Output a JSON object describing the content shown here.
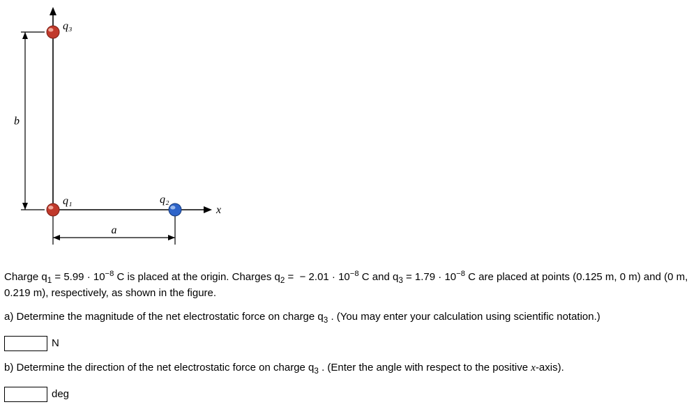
{
  "figure": {
    "q1_label": "q₁",
    "q2_label": "q₂",
    "q3_label": "q₃",
    "x_axis_label": "x",
    "a_label": "a",
    "b_label": "b",
    "charge_red_fill": "#c0392b",
    "charge_red_stroke": "#7a1f15",
    "charge_red_highlight": "#f5b7a8",
    "charge_blue_fill": "#2e64c9",
    "charge_blue_stroke": "#173a78",
    "charge_blue_highlight": "#a9c3ee",
    "axis_color": "#000000",
    "figure_bg": "#ffffff",
    "label_font_family": "Times New Roman",
    "label_font_size": 16,
    "charge_radius": 9,
    "axis_stroke_width": 1.6
  },
  "problem": {
    "line1_a": "Charge q",
    "line1_b": " = 5.99 · 10",
    "line1_c": " C is placed at the origin. Charges q",
    "line1_d": " =  − 2.01 · 10",
    "line1_e": " C and q",
    "line1_f": " = 1.79 · 10",
    "line1_g": " C are placed at points (0.125 m, 0 m) and (0 m, 0.219 m), respectively, as shown in the figure.",
    "sub1": "1",
    "sub2": "2",
    "sub3": "3",
    "exp_neg8": "−8",
    "part_a_a": "a) Determine the magnitude of the net electrostatic force on charge q",
    "part_a_b": " . (You may enter your calculation using scientific notation.)",
    "unit_a": "N",
    "part_b_a": "b) Determine the direction of the net electrostatic force on charge q",
    "part_b_b": " . (Enter the angle with respect to the positive ",
    "part_b_c": "x",
    "part_b_d": "-axis).",
    "unit_b": "deg"
  }
}
